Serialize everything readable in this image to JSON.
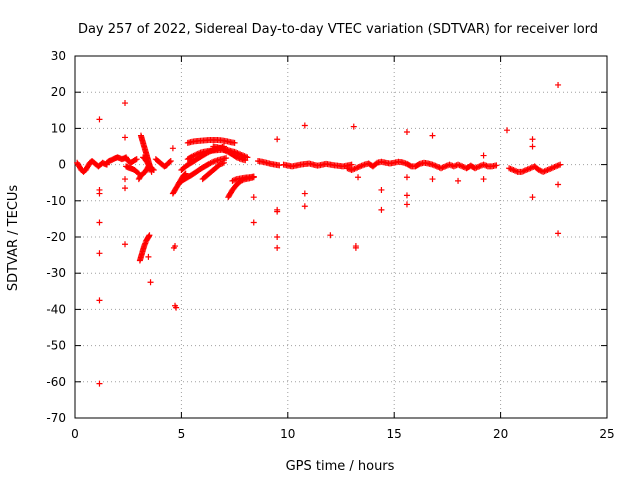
{
  "chart_data": {
    "type": "scatter",
    "title": "Day 257 of 2022, Sidereal Day-to-day VTEC variation (SDTVAR) for receiver lord",
    "xlabel": "GPS time / hours",
    "ylabel": "SDTVAR / TECUs",
    "xlim": [
      0,
      25
    ],
    "ylim": [
      -70,
      30
    ],
    "xticks": [
      0,
      5,
      10,
      15,
      20,
      25
    ],
    "yticks": [
      -70,
      -60,
      -50,
      -40,
      -30,
      -20,
      -10,
      0,
      10,
      20,
      30
    ],
    "xtick_labels": [
      "0",
      "5",
      "10",
      "15",
      "20",
      "25"
    ],
    "ytick_labels": [
      "-70",
      "-60",
      "-50",
      "-40",
      "-30",
      "-20",
      "-10",
      "0",
      "10",
      "20",
      "30"
    ],
    "grid": true,
    "marker": "+",
    "color": "#ff0000",
    "segments": [
      {
        "x": [
          0.1,
          0.2,
          0.3,
          0.4,
          0.5,
          0.6,
          0.7,
          0.8,
          0.9,
          1.0,
          1.1,
          1.2,
          1.3,
          1.4,
          1.5
        ],
        "y": [
          0.5,
          -0.5,
          -1.5,
          -2.0,
          -1.5,
          -0.5,
          0.5,
          1.0,
          0.5,
          0.0,
          -0.5,
          0.0,
          0.5,
          0.2,
          0.0
        ]
      },
      {
        "x": [
          1.5,
          1.6,
          1.7,
          1.8,
          1.9,
          2.0,
          2.1,
          2.2,
          2.3,
          2.4,
          2.5,
          2.6,
          2.7,
          2.8,
          2.9
        ],
        "y": [
          0.5,
          1.0,
          1.2,
          1.5,
          1.8,
          2.0,
          1.8,
          1.5,
          1.7,
          2.0,
          1.0,
          0.5,
          0.8,
          1.2,
          1.5
        ]
      },
      {
        "x": [
          2.4,
          2.5,
          2.6,
          2.7,
          2.8,
          2.9,
          3.0
        ],
        "y": [
          -0.5,
          -0.8,
          -1.0,
          -1.2,
          -1.5,
          -2.0,
          -2.5
        ]
      },
      {
        "x": [
          3.1,
          3.15,
          3.2,
          3.25,
          3.3,
          3.35,
          3.4,
          3.45,
          3.5,
          3.55,
          3.6
        ],
        "y": [
          8.0,
          7.0,
          6.0,
          5.0,
          4.0,
          3.0,
          2.0,
          1.0,
          0.0,
          -1.0,
          -2.0
        ]
      },
      {
        "x": [
          3.2,
          3.3,
          3.4,
          3.5,
          3.6,
          3.7
        ],
        "y": [
          2.0,
          1.5,
          0.5,
          -0.5,
          -1.0,
          -1.5
        ]
      },
      {
        "x": [
          3.0,
          3.1,
          3.2,
          3.3,
          3.4,
          3.5
        ],
        "y": [
          -4.0,
          -3.0,
          -2.5,
          -2.0,
          -1.0,
          0.0
        ]
      },
      {
        "x": [
          3.05,
          3.1,
          3.15,
          3.2,
          3.25,
          3.3,
          3.35,
          3.4,
          3.45,
          3.5
        ],
        "y": [
          -26.5,
          -25.5,
          -24.5,
          -23.5,
          -22.5,
          -21.8,
          -21.0,
          -20.5,
          -20.0,
          -19.5
        ]
      },
      {
        "x": [
          3.8,
          3.9,
          4.0,
          4.1,
          4.2,
          4.3,
          4.4,
          4.5
        ],
        "y": [
          1.5,
          1.0,
          0.5,
          0.0,
          -0.5,
          -0.2,
          0.5,
          1.0
        ]
      },
      {
        "x": [
          4.6,
          4.7,
          4.8,
          4.9,
          5.0,
          5.1,
          5.2
        ],
        "y": [
          -8.0,
          -7.0,
          -6.0,
          -5.0,
          -4.0,
          -3.0,
          -2.5
        ]
      },
      {
        "x": [
          4.9,
          5.1,
          5.3,
          5.5,
          5.7,
          5.9,
          6.1,
          6.3,
          6.5,
          6.7,
          6.9,
          7.1
        ],
        "y": [
          -5.0,
          -4.2,
          -3.5,
          -2.8,
          -2.0,
          -1.2,
          -0.5,
          0.2,
          0.8,
          1.2,
          1.5,
          1.8
        ]
      },
      {
        "x": [
          5.0,
          5.2,
          5.4,
          5.6,
          5.8,
          6.0,
          6.2,
          6.4,
          6.6,
          6.8,
          7.0
        ],
        "y": [
          -1.5,
          -0.5,
          0.3,
          1.0,
          1.8,
          2.5,
          3.2,
          3.8,
          4.2,
          4.6,
          5.0
        ]
      },
      {
        "x": [
          5.3,
          5.5,
          5.7,
          5.9,
          6.1,
          6.3,
          6.5,
          6.7,
          6.9,
          7.1
        ],
        "y": [
          1.5,
          2.2,
          2.8,
          3.3,
          3.6,
          3.8,
          3.9,
          4.0,
          4.1,
          4.0
        ]
      },
      {
        "x": [
          5.3,
          5.5,
          5.7,
          5.9,
          6.1,
          6.3,
          6.5,
          6.7,
          6.9,
          7.1,
          7.3,
          7.5
        ],
        "y": [
          6.0,
          6.3,
          6.5,
          6.6,
          6.7,
          6.8,
          6.8,
          6.8,
          6.7,
          6.5,
          6.2,
          6.0
        ]
      },
      {
        "x": [
          6.5,
          6.7,
          6.9,
          7.1,
          7.3,
          7.5,
          7.7,
          7.9,
          8.1
        ],
        "y": [
          5.0,
          4.8,
          4.5,
          4.2,
          3.8,
          3.5,
          3.0,
          2.5,
          2.0
        ]
      },
      {
        "x": [
          7.0,
          7.2,
          7.4,
          7.6,
          7.8,
          8.0
        ],
        "y": [
          4.0,
          3.5,
          2.8,
          2.0,
          1.5,
          1.2
        ]
      },
      {
        "x": [
          6.0,
          6.2,
          6.4,
          6.6,
          6.8,
          7.0
        ],
        "y": [
          -4.0,
          -3.0,
          -2.0,
          -1.0,
          0.0,
          0.5
        ]
      },
      {
        "x": [
          7.2,
          7.4,
          7.6,
          7.8,
          8.0,
          8.2,
          8.4
        ],
        "y": [
          -9.0,
          -7.0,
          -5.5,
          -4.5,
          -4.0,
          -3.8,
          -3.5
        ]
      },
      {
        "x": [
          7.4,
          7.6,
          7.8,
          8.0,
          8.2,
          8.4
        ],
        "y": [
          -4.5,
          -4.0,
          -3.8,
          -3.6,
          -3.5,
          -3.3
        ]
      },
      {
        "x": [
          8.6,
          8.8,
          9.0,
          9.2,
          9.4,
          9.6
        ],
        "y": [
          1.0,
          0.8,
          0.5,
          0.2,
          0.0,
          -0.2
        ]
      },
      {
        "x": [
          9.8,
          10.2,
          10.6,
          11.0,
          11.4,
          11.8,
          12.2,
          12.6,
          13.0
        ],
        "y": [
          0.0,
          -0.5,
          0.0,
          0.3,
          -0.3,
          0.2,
          -0.2,
          -0.5,
          0.0
        ]
      },
      {
        "x": [
          12.8,
          13.0,
          13.2,
          13.4,
          13.6,
          13.8,
          14.0,
          14.2,
          14.4,
          14.6,
          14.8,
          15.0,
          15.2,
          15.4,
          15.6,
          15.8,
          16.0,
          16.2,
          16.4,
          16.6,
          16.8,
          17.0,
          17.2,
          17.4,
          17.6,
          17.8,
          18.0,
          18.2,
          18.4,
          18.6,
          18.8,
          19.0,
          19.2,
          19.4,
          19.6,
          19.8
        ],
        "y": [
          -1.0,
          -1.5,
          -1.0,
          -0.5,
          0.0,
          0.3,
          -0.5,
          0.5,
          0.8,
          0.5,
          0.3,
          0.5,
          0.8,
          0.6,
          0.2,
          -0.5,
          -0.5,
          0.2,
          0.5,
          0.3,
          0.0,
          -0.5,
          -1.0,
          -0.5,
          0.0,
          -0.5,
          0.0,
          -0.5,
          -1.0,
          -0.3,
          -1.0,
          -0.5,
          0.0,
          -0.5,
          -0.5,
          -0.2
        ]
      },
      {
        "x": [
          20.4,
          20.6,
          20.8,
          21.0,
          21.2,
          21.4,
          21.6,
          21.8,
          22.0,
          22.2,
          22.4,
          22.6,
          22.8
        ],
        "y": [
          -1.0,
          -1.5,
          -2.0,
          -2.0,
          -1.5,
          -1.0,
          -0.5,
          -1.5,
          -2.0,
          -1.5,
          -1.0,
          -0.5,
          0.0
        ]
      }
    ],
    "outliers": {
      "x": [
        1.15,
        1.15,
        1.15,
        1.15,
        1.15,
        1.15,
        1.15,
        2.35,
        2.35,
        2.35,
        2.35,
        2.35,
        3.45,
        3.55,
        4.6,
        4.7,
        4.65,
        4.7,
        4.75,
        8.4,
        8.4,
        9.5,
        9.5,
        9.5,
        9.5,
        9.5,
        10.8,
        10.8,
        10.8,
        12.0,
        13.1,
        13.2,
        13.2,
        13.3,
        14.4,
        14.4,
        15.6,
        15.6,
        15.6,
        15.6,
        16.8,
        16.8,
        18.0,
        19.2,
        19.2,
        20.3,
        21.5,
        21.5,
        21.5,
        22.7,
        22.7,
        22.7
      ],
      "y": [
        12.5,
        -7.0,
        -8.0,
        -16.0,
        -24.5,
        -37.5,
        -60.5,
        17.0,
        7.5,
        -4.0,
        -6.5,
        -22.0,
        -25.5,
        -32.5,
        4.5,
        -22.5,
        -23.0,
        -39.0,
        -39.5,
        -16.0,
        -9.0,
        7.0,
        -13.0,
        -20.0,
        -23.0,
        -12.5,
        10.8,
        -8.0,
        -11.5,
        -19.5,
        10.5,
        -23.0,
        -22.5,
        -3.5,
        -7.0,
        -12.5,
        9.0,
        -8.5,
        -3.5,
        -11.0,
        8.0,
        -4.0,
        -4.5,
        2.5,
        -4.0,
        9.5,
        7.0,
        5.0,
        -9.0,
        22.0,
        -5.5,
        -19.0
      ]
    }
  }
}
